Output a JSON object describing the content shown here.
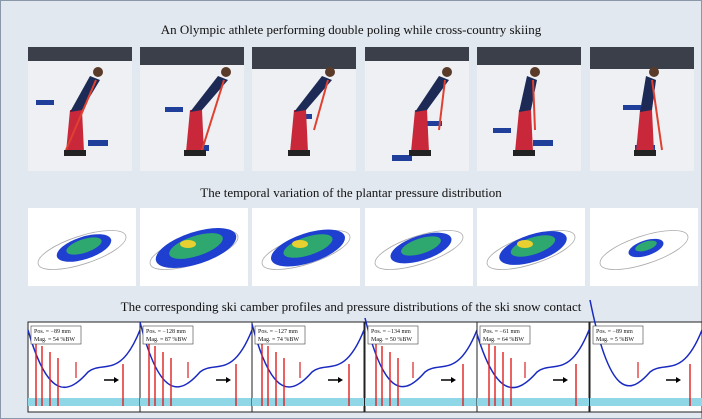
{
  "title_photos": "An Olympic athlete performing double poling while cross-country skiing",
  "title_pressure": "The temporal variation of the plantar pressure distribution",
  "title_camber": "The corresponding ski camber profiles and pressure distributions of the ski snow contact",
  "panels": [
    {
      "position": "Pos. = −89 mm",
      "magnitude": "Mag. = 54 %BW"
    },
    {
      "position": "Pos. = −128 mm",
      "magnitude": "Mag. = 87 %BW"
    },
    {
      "position": "Pos. = −127 mm",
      "magnitude": "Mag. = 74 %BW"
    },
    {
      "position": "Pos. = −134 mm",
      "magnitude": "Mag. = 50 %BW"
    },
    {
      "position": "Pos. = −61 mm",
      "magnitude": "Mag. = 64 %BW"
    },
    {
      "position": "Pos. = −89 mm",
      "magnitude": "Mag. = 5 %BW"
    }
  ]
}
